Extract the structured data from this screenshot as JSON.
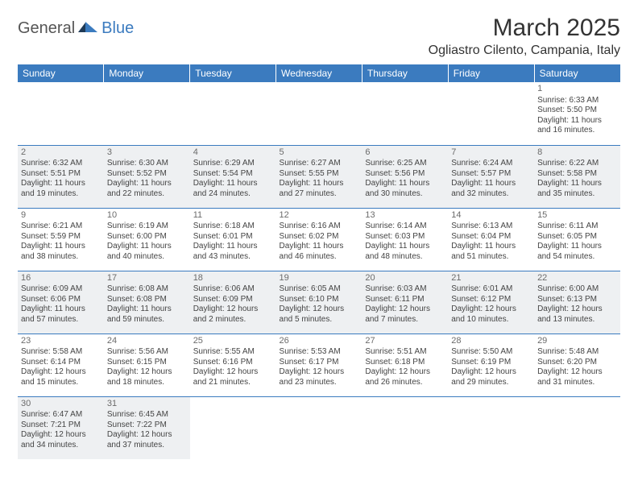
{
  "logo": {
    "left": "General",
    "right": "Blue"
  },
  "title": "March 2025",
  "location": "Ogliastro Cilento, Campania, Italy",
  "colors": {
    "header_bg": "#3b7bbf",
    "header_text": "#ffffff",
    "border": "#3b7bbf",
    "shaded_bg": "#eef0f2",
    "text": "#444444",
    "daynum": "#6b6b6b",
    "page_bg": "#ffffff"
  },
  "weekdays": [
    "Sunday",
    "Monday",
    "Tuesday",
    "Wednesday",
    "Thursday",
    "Friday",
    "Saturday"
  ],
  "rows": [
    [
      {
        "day": "",
        "sunrise": "",
        "sunset": "",
        "daylight": "",
        "shaded": false,
        "blank": true
      },
      {
        "day": "",
        "sunrise": "",
        "sunset": "",
        "daylight": "",
        "shaded": false,
        "blank": true
      },
      {
        "day": "",
        "sunrise": "",
        "sunset": "",
        "daylight": "",
        "shaded": false,
        "blank": true
      },
      {
        "day": "",
        "sunrise": "",
        "sunset": "",
        "daylight": "",
        "shaded": false,
        "blank": true
      },
      {
        "day": "",
        "sunrise": "",
        "sunset": "",
        "daylight": "",
        "shaded": false,
        "blank": true
      },
      {
        "day": "",
        "sunrise": "",
        "sunset": "",
        "daylight": "",
        "shaded": false,
        "blank": true
      },
      {
        "day": "1",
        "sunrise": "Sunrise: 6:33 AM",
        "sunset": "Sunset: 5:50 PM",
        "daylight": "Daylight: 11 hours and 16 minutes.",
        "shaded": false
      }
    ],
    [
      {
        "day": "2",
        "sunrise": "Sunrise: 6:32 AM",
        "sunset": "Sunset: 5:51 PM",
        "daylight": "Daylight: 11 hours and 19 minutes.",
        "shaded": true
      },
      {
        "day": "3",
        "sunrise": "Sunrise: 6:30 AM",
        "sunset": "Sunset: 5:52 PM",
        "daylight": "Daylight: 11 hours and 22 minutes.",
        "shaded": true
      },
      {
        "day": "4",
        "sunrise": "Sunrise: 6:29 AM",
        "sunset": "Sunset: 5:54 PM",
        "daylight": "Daylight: 11 hours and 24 minutes.",
        "shaded": true
      },
      {
        "day": "5",
        "sunrise": "Sunrise: 6:27 AM",
        "sunset": "Sunset: 5:55 PM",
        "daylight": "Daylight: 11 hours and 27 minutes.",
        "shaded": true
      },
      {
        "day": "6",
        "sunrise": "Sunrise: 6:25 AM",
        "sunset": "Sunset: 5:56 PM",
        "daylight": "Daylight: 11 hours and 30 minutes.",
        "shaded": true
      },
      {
        "day": "7",
        "sunrise": "Sunrise: 6:24 AM",
        "sunset": "Sunset: 5:57 PM",
        "daylight": "Daylight: 11 hours and 32 minutes.",
        "shaded": true
      },
      {
        "day": "8",
        "sunrise": "Sunrise: 6:22 AM",
        "sunset": "Sunset: 5:58 PM",
        "daylight": "Daylight: 11 hours and 35 minutes.",
        "shaded": true
      }
    ],
    [
      {
        "day": "9",
        "sunrise": "Sunrise: 6:21 AM",
        "sunset": "Sunset: 5:59 PM",
        "daylight": "Daylight: 11 hours and 38 minutes.",
        "shaded": false
      },
      {
        "day": "10",
        "sunrise": "Sunrise: 6:19 AM",
        "sunset": "Sunset: 6:00 PM",
        "daylight": "Daylight: 11 hours and 40 minutes.",
        "shaded": false
      },
      {
        "day": "11",
        "sunrise": "Sunrise: 6:18 AM",
        "sunset": "Sunset: 6:01 PM",
        "daylight": "Daylight: 11 hours and 43 minutes.",
        "shaded": false
      },
      {
        "day": "12",
        "sunrise": "Sunrise: 6:16 AM",
        "sunset": "Sunset: 6:02 PM",
        "daylight": "Daylight: 11 hours and 46 minutes.",
        "shaded": false
      },
      {
        "day": "13",
        "sunrise": "Sunrise: 6:14 AM",
        "sunset": "Sunset: 6:03 PM",
        "daylight": "Daylight: 11 hours and 48 minutes.",
        "shaded": false
      },
      {
        "day": "14",
        "sunrise": "Sunrise: 6:13 AM",
        "sunset": "Sunset: 6:04 PM",
        "daylight": "Daylight: 11 hours and 51 minutes.",
        "shaded": false
      },
      {
        "day": "15",
        "sunrise": "Sunrise: 6:11 AM",
        "sunset": "Sunset: 6:05 PM",
        "daylight": "Daylight: 11 hours and 54 minutes.",
        "shaded": false
      }
    ],
    [
      {
        "day": "16",
        "sunrise": "Sunrise: 6:09 AM",
        "sunset": "Sunset: 6:06 PM",
        "daylight": "Daylight: 11 hours and 57 minutes.",
        "shaded": true
      },
      {
        "day": "17",
        "sunrise": "Sunrise: 6:08 AM",
        "sunset": "Sunset: 6:08 PM",
        "daylight": "Daylight: 11 hours and 59 minutes.",
        "shaded": true
      },
      {
        "day": "18",
        "sunrise": "Sunrise: 6:06 AM",
        "sunset": "Sunset: 6:09 PM",
        "daylight": "Daylight: 12 hours and 2 minutes.",
        "shaded": true
      },
      {
        "day": "19",
        "sunrise": "Sunrise: 6:05 AM",
        "sunset": "Sunset: 6:10 PM",
        "daylight": "Daylight: 12 hours and 5 minutes.",
        "shaded": true
      },
      {
        "day": "20",
        "sunrise": "Sunrise: 6:03 AM",
        "sunset": "Sunset: 6:11 PM",
        "daylight": "Daylight: 12 hours and 7 minutes.",
        "shaded": true
      },
      {
        "day": "21",
        "sunrise": "Sunrise: 6:01 AM",
        "sunset": "Sunset: 6:12 PM",
        "daylight": "Daylight: 12 hours and 10 minutes.",
        "shaded": true
      },
      {
        "day": "22",
        "sunrise": "Sunrise: 6:00 AM",
        "sunset": "Sunset: 6:13 PM",
        "daylight": "Daylight: 12 hours and 13 minutes.",
        "shaded": true
      }
    ],
    [
      {
        "day": "23",
        "sunrise": "Sunrise: 5:58 AM",
        "sunset": "Sunset: 6:14 PM",
        "daylight": "Daylight: 12 hours and 15 minutes.",
        "shaded": false
      },
      {
        "day": "24",
        "sunrise": "Sunrise: 5:56 AM",
        "sunset": "Sunset: 6:15 PM",
        "daylight": "Daylight: 12 hours and 18 minutes.",
        "shaded": false
      },
      {
        "day": "25",
        "sunrise": "Sunrise: 5:55 AM",
        "sunset": "Sunset: 6:16 PM",
        "daylight": "Daylight: 12 hours and 21 minutes.",
        "shaded": false
      },
      {
        "day": "26",
        "sunrise": "Sunrise: 5:53 AM",
        "sunset": "Sunset: 6:17 PM",
        "daylight": "Daylight: 12 hours and 23 minutes.",
        "shaded": false
      },
      {
        "day": "27",
        "sunrise": "Sunrise: 5:51 AM",
        "sunset": "Sunset: 6:18 PM",
        "daylight": "Daylight: 12 hours and 26 minutes.",
        "shaded": false
      },
      {
        "day": "28",
        "sunrise": "Sunrise: 5:50 AM",
        "sunset": "Sunset: 6:19 PM",
        "daylight": "Daylight: 12 hours and 29 minutes.",
        "shaded": false
      },
      {
        "day": "29",
        "sunrise": "Sunrise: 5:48 AM",
        "sunset": "Sunset: 6:20 PM",
        "daylight": "Daylight: 12 hours and 31 minutes.",
        "shaded": false
      }
    ],
    [
      {
        "day": "30",
        "sunrise": "Sunrise: 6:47 AM",
        "sunset": "Sunset: 7:21 PM",
        "daylight": "Daylight: 12 hours and 34 minutes.",
        "shaded": true
      },
      {
        "day": "31",
        "sunrise": "Sunrise: 6:45 AM",
        "sunset": "Sunset: 7:22 PM",
        "daylight": "Daylight: 12 hours and 37 minutes.",
        "shaded": true
      },
      {
        "day": "",
        "sunrise": "",
        "sunset": "",
        "daylight": "",
        "shaded": false,
        "blank": true
      },
      {
        "day": "",
        "sunrise": "",
        "sunset": "",
        "daylight": "",
        "shaded": false,
        "blank": true
      },
      {
        "day": "",
        "sunrise": "",
        "sunset": "",
        "daylight": "",
        "shaded": false,
        "blank": true
      },
      {
        "day": "",
        "sunrise": "",
        "sunset": "",
        "daylight": "",
        "shaded": false,
        "blank": true
      },
      {
        "day": "",
        "sunrise": "",
        "sunset": "",
        "daylight": "",
        "shaded": false,
        "blank": true
      }
    ]
  ]
}
